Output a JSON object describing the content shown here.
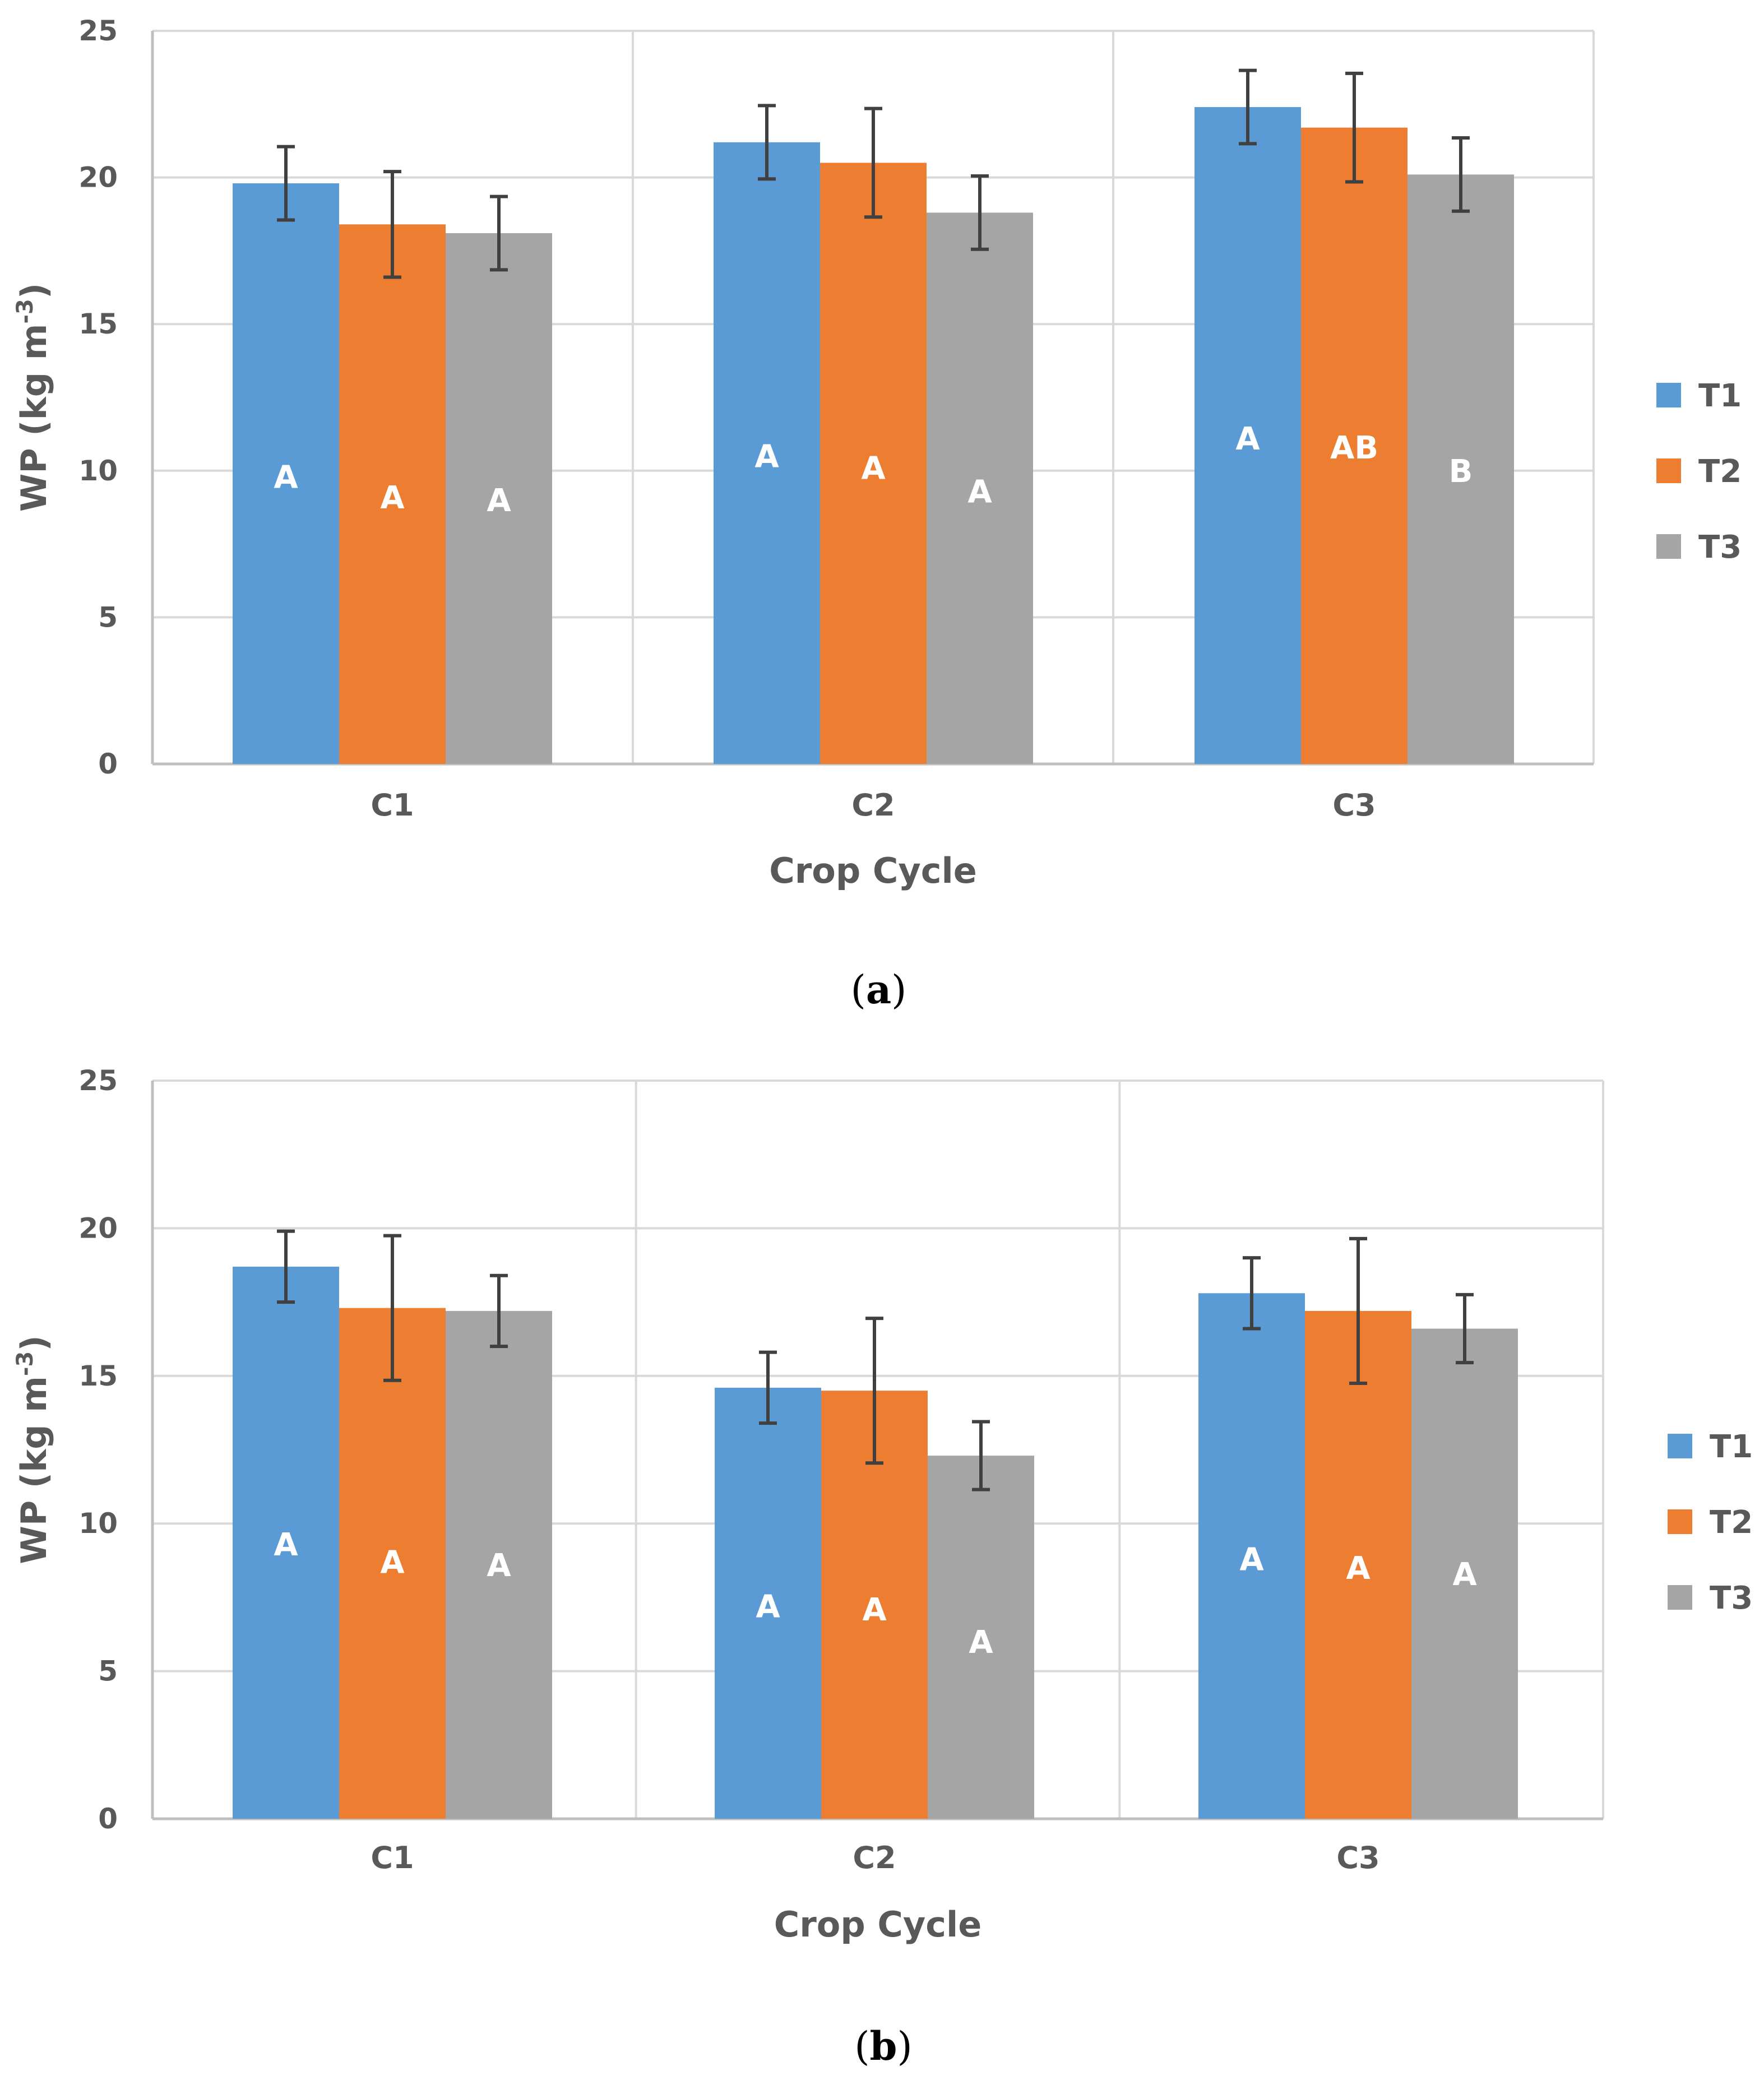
{
  "colors": {
    "T1": "#5B9BD5",
    "T2": "#ED7D31",
    "T3": "#A5A5A5",
    "grid": "#D9D9D9",
    "axis": "#BFBFBF",
    "errorbar": "#404040"
  },
  "chart_data": [
    {
      "type": "bar",
      "panel": "a",
      "caption": {
        "open": "(",
        "letter": "a",
        "close": ")"
      },
      "categories": [
        "C1",
        "C2",
        "C3"
      ],
      "series": [
        {
          "name": "T1",
          "values": [
            19.8,
            21.2,
            22.4
          ],
          "errors": [
            1.25,
            1.25,
            1.25
          ],
          "labels": [
            "A",
            "A",
            "A"
          ]
        },
        {
          "name": "T2",
          "values": [
            18.4,
            20.5,
            21.7
          ],
          "errors": [
            1.8,
            1.85,
            1.85
          ],
          "labels": [
            "A",
            "A",
            "AB"
          ]
        },
        {
          "name": "T3",
          "values": [
            18.1,
            18.8,
            20.1
          ],
          "errors": [
            1.25,
            1.25,
            1.25
          ],
          "labels": [
            "A",
            "A",
            "B"
          ]
        }
      ],
      "label_values": [
        [
          9.8,
          10.5,
          11.1
        ],
        [
          9.1,
          10.1,
          10.8
        ],
        [
          9.0,
          9.3,
          10.0
        ]
      ],
      "xlabel": "Crop Cycle",
      "ylabel": {
        "text": "WP (kg m",
        "sup": "-3",
        "close": ")"
      },
      "ylim": [
        0,
        25
      ],
      "yticks": [
        0,
        5,
        10,
        15,
        20,
        25
      ],
      "grid": true,
      "legend": "right"
    },
    {
      "type": "bar",
      "panel": "b",
      "caption": {
        "open": "(",
        "letter": "b",
        "close": ")"
      },
      "categories": [
        "C1",
        "C2",
        "C3"
      ],
      "series": [
        {
          "name": "T1",
          "values": [
            18.7,
            14.6,
            17.8
          ],
          "errors": [
            1.2,
            1.2,
            1.2
          ],
          "labels": [
            "A",
            "A",
            "A"
          ]
        },
        {
          "name": "T2",
          "values": [
            17.3,
            14.5,
            17.2
          ],
          "errors": [
            2.45,
            2.45,
            2.45
          ],
          "labels": [
            "A",
            "A",
            "A"
          ]
        },
        {
          "name": "T3",
          "values": [
            17.2,
            12.3,
            16.6
          ],
          "errors": [
            1.2,
            1.15,
            1.15
          ],
          "labels": [
            "A",
            "A",
            "A"
          ]
        }
      ],
      "label_values": [
        [
          9.3,
          7.2,
          8.8
        ],
        [
          8.7,
          7.1,
          8.5
        ],
        [
          8.6,
          6.0,
          8.3
        ]
      ],
      "xlabel": "Crop Cycle",
      "ylabel": {
        "text": "WP (kg m",
        "sup": "-3",
        "close": ")"
      },
      "ylim": [
        0,
        25
      ],
      "yticks": [
        0,
        5,
        10,
        15,
        20,
        25
      ],
      "grid": true,
      "legend": "right"
    }
  ]
}
